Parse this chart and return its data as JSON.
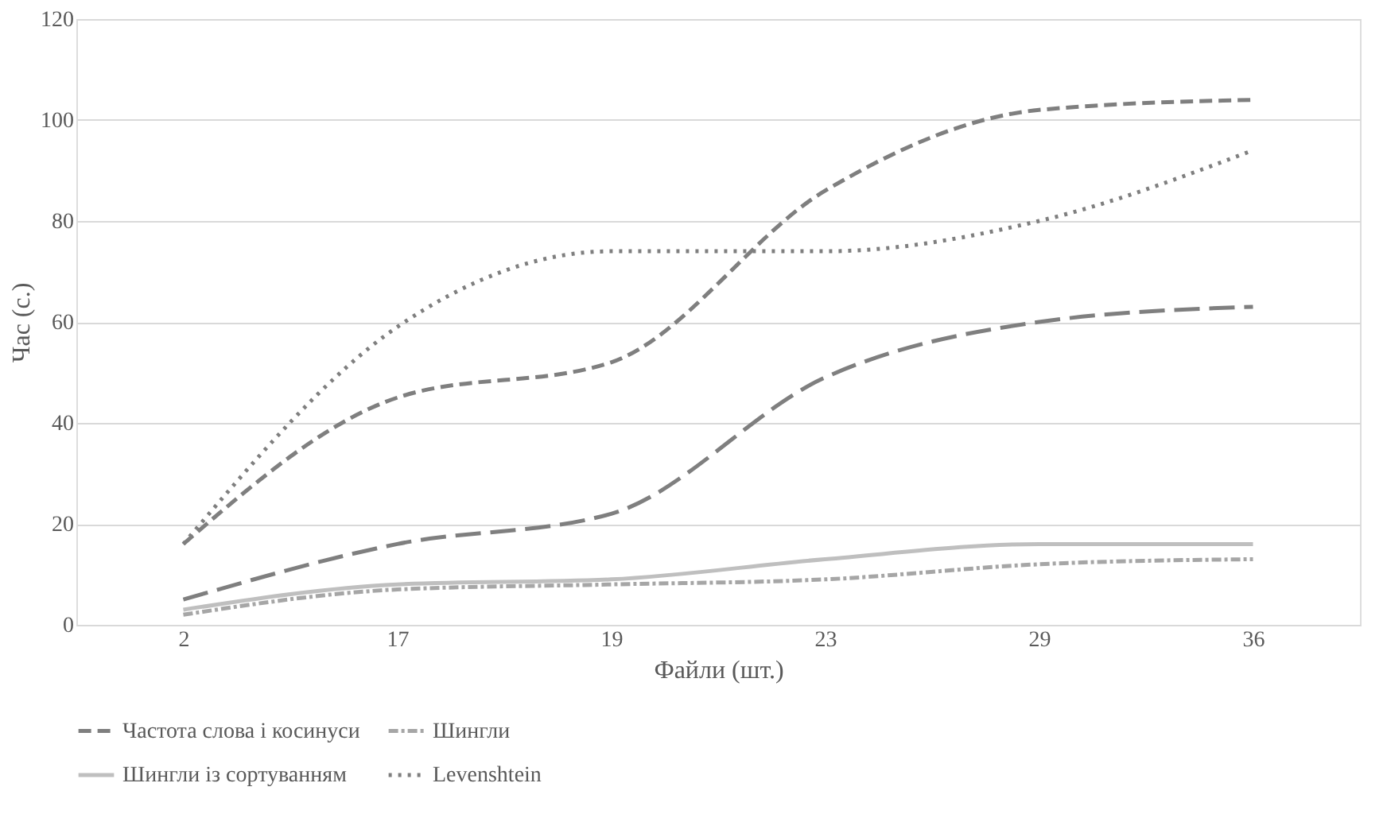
{
  "chart_data": {
    "type": "line",
    "xlabel": "Файли (шт.)",
    "ylabel": "Час (с.)",
    "categories": [
      "2",
      "17",
      "19",
      "23",
      "29",
      "36"
    ],
    "series": [
      {
        "name": "Частота слова і косинуси",
        "color": "#7f7f7f",
        "line_style": "dashed",
        "values": [
          16,
          45,
          52,
          86,
          102,
          104
        ]
      },
      {
        "name": "Шингли",
        "color": "#a6a6a6",
        "line_style": "dashdot",
        "values": [
          2,
          7,
          8,
          9,
          12,
          13
        ]
      },
      {
        "name": "Шингли із сортуванням",
        "color": "#bfbfbf",
        "line_style": "solid",
        "values": [
          3,
          8,
          9,
          13,
          16,
          16
        ]
      },
      {
        "color": "#7f7f7f",
        "line_style": "longdash",
        "values": [
          5,
          16,
          22,
          49,
          60,
          63
        ]
      },
      {
        "name": "Levenshtein",
        "color": "#7f7f7f",
        "line_style": "dotted",
        "values": [
          16,
          59,
          74,
          74,
          80,
          94
        ]
      }
    ],
    "ylim": [
      0,
      120
    ],
    "yticks": [
      0,
      20,
      40,
      60,
      80,
      100,
      120
    ],
    "grid": "y",
    "legend": "bottom",
    "marker": "none"
  }
}
